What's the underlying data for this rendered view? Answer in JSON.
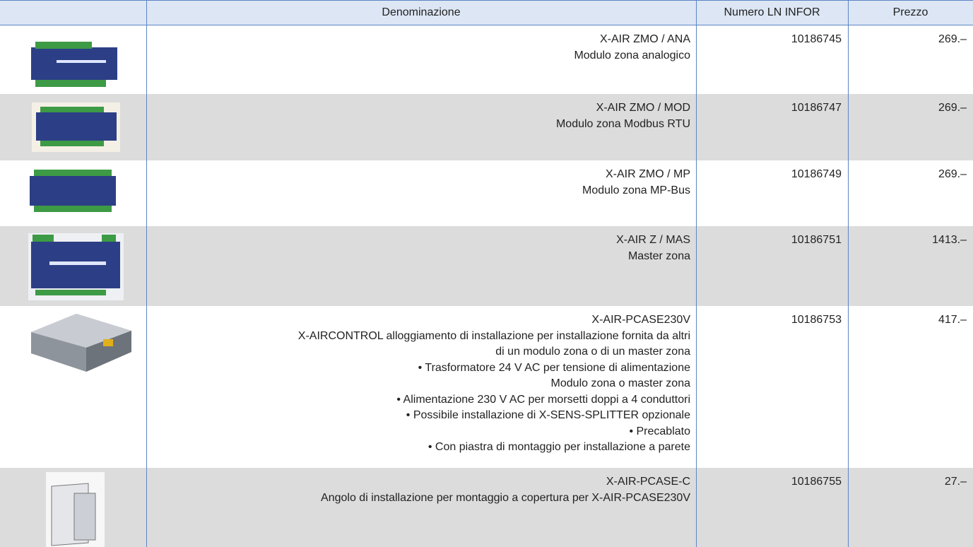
{
  "table": {
    "headers": [
      "Denominazione",
      "Numero LN INFOR",
      "Prezzo"
    ],
    "rows": [
      {
        "lines": [
          "X-AIR ZMO / ANA",
          "Modulo zona analogico"
        ],
        "number": "10186745",
        "price": "269.–"
      },
      {
        "lines": [
          "X-AIR ZMO / MOD",
          "Modulo zona Modbus RTU"
        ],
        "number": "10186747",
        "price": "269.–"
      },
      {
        "lines": [
          "X-AIR ZMO / MP",
          "Modulo zona MP-Bus"
        ],
        "number": "10186749",
        "price": "269.–"
      },
      {
        "lines": [
          "X-AIR Z / MAS",
          "Master zona"
        ],
        "number": "10186751",
        "price": "1413.–"
      },
      {
        "lines": [
          "X-AIR-PCASE230V",
          "X-AIRCONTROL alloggiamento di installazione per installazione fornita da altri",
          "di un modulo zona o di un master zona",
          "• Trasformatore 24 V AC per tensione di alimentazione",
          "Modulo zona o master zona",
          "• Alimentazione 230 V AC per morsetti doppi a 4 conduttori",
          "• Possibile installazione di X-SENS-SPLITTER opzionale",
          "• Precablato",
          "• Con piastra di montaggio per installazione a parete"
        ],
        "number": "10186753",
        "price": "417.–"
      },
      {
        "lines": [
          "X-AIR-PCASE-C",
          "Angolo di installazione per montaggio a copertura per X-AIR-PCASE230V"
        ],
        "number": "10186755",
        "price": "27.–"
      }
    ]
  }
}
